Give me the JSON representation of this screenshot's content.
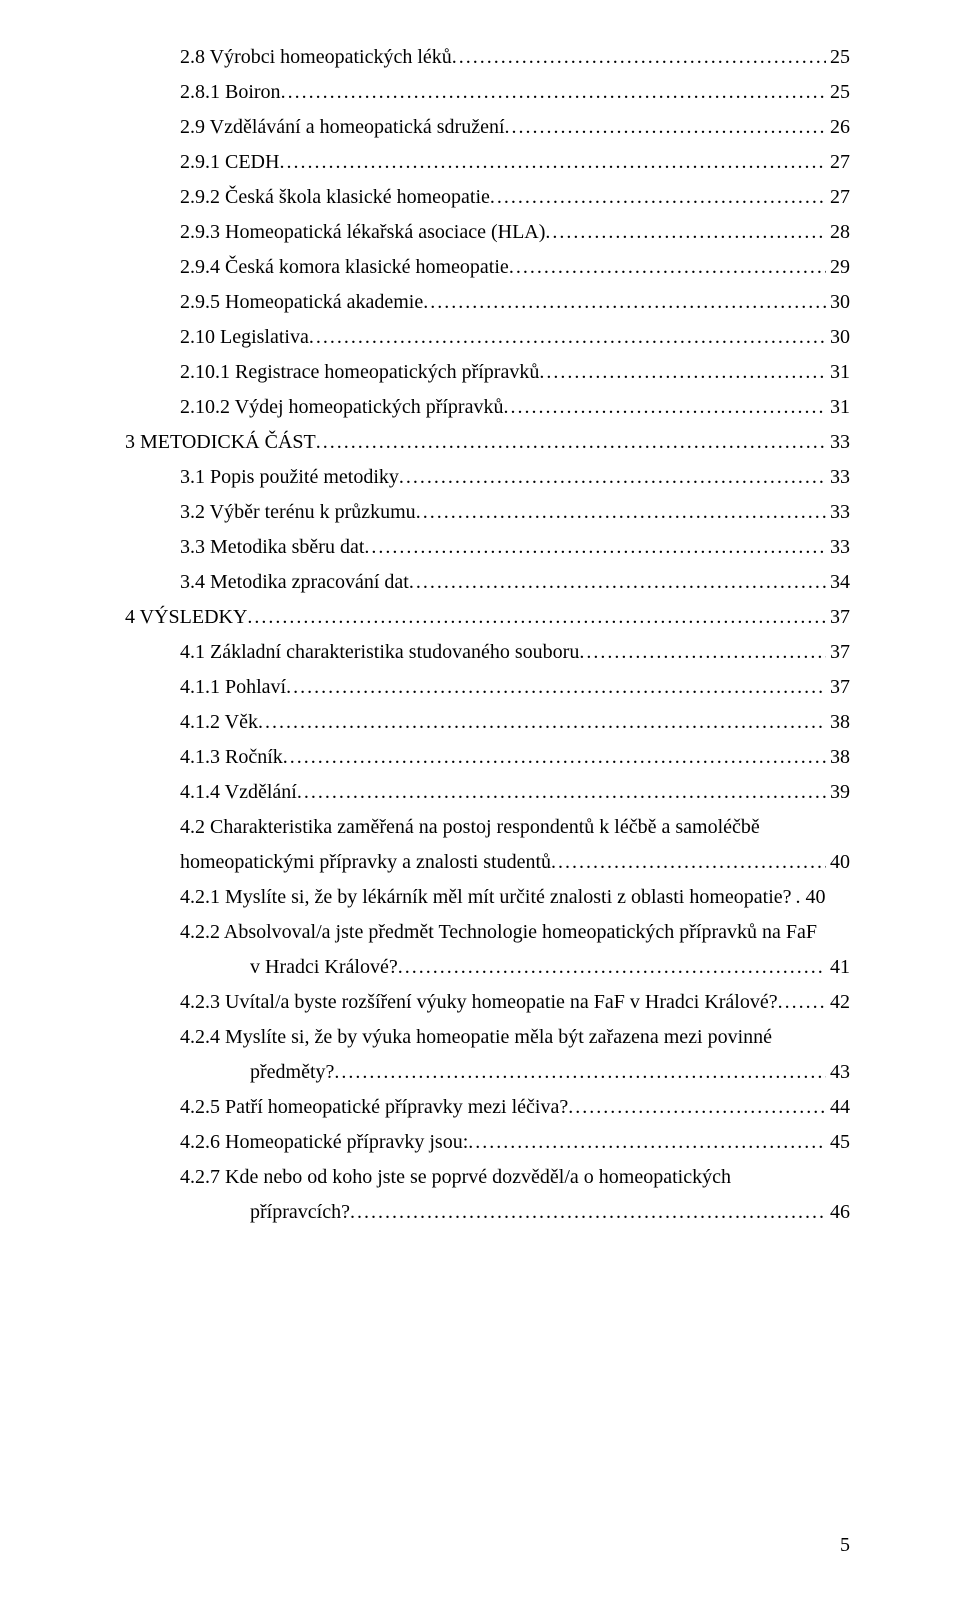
{
  "entries": [
    {
      "indentClass": "indent-1",
      "label": "2.8   Výrobci homeopatických léků",
      "page": "25"
    },
    {
      "indentClass": "indent-2",
      "label": "2.8.1    Boiron",
      "page": "25"
    },
    {
      "indentClass": "indent-1",
      "label": "2.9   Vzdělávání a homeopatická sdružení",
      "page": "26"
    },
    {
      "indentClass": "indent-2",
      "label": "2.9.1    CEDH",
      "page": "27"
    },
    {
      "indentClass": "indent-2",
      "label": "2.9.2    Česká škola klasické homeopatie",
      "page": "27"
    },
    {
      "indentClass": "indent-2",
      "label": "2.9.3    Homeopatická lékařská asociace (HLA)",
      "page": "28"
    },
    {
      "indentClass": "indent-2",
      "label": "2.9.4    Česká komora klasické homeopatie",
      "page": "29"
    },
    {
      "indentClass": "indent-2",
      "label": "2.9.5    Homeopatická akademie",
      "page": "30"
    },
    {
      "indentClass": "indent-1",
      "label": "2.10  Legislativa",
      "page": "30"
    },
    {
      "indentClass": "indent-2",
      "label": "2.10.1  Registrace homeopatických přípravků",
      "page": "31"
    },
    {
      "indentClass": "indent-2",
      "label": "2.10.2  Výdej homeopatických přípravků",
      "page": "31"
    },
    {
      "indentClass": "indent-0n",
      "label": "3   METODICKÁ ČÁST",
      "page": "33"
    },
    {
      "indentClass": "indent-1",
      "label": "3.1   Popis použité metodiky",
      "page": "33"
    },
    {
      "indentClass": "indent-1",
      "label": "3.2   Výběr terénu k průzkumu",
      "page": "33"
    },
    {
      "indentClass": "indent-1",
      "label": "3.3   Metodika sběru dat",
      "page": "33"
    },
    {
      "indentClass": "indent-1",
      "label": "3.4   Metodika zpracování dat",
      "page": "34"
    },
    {
      "indentClass": "indent-0n",
      "label": "4   VÝSLEDKY",
      "page": "37"
    },
    {
      "indentClass": "indent-1",
      "label": "4.1   Základní charakteristika studovaného souboru",
      "page": "37"
    },
    {
      "indentClass": "indent-2",
      "label": "4.1.1    Pohlaví",
      "page": "37"
    },
    {
      "indentClass": "indent-2",
      "label": "4.1.2    Věk",
      "page": "38"
    },
    {
      "indentClass": "indent-2",
      "label": "4.1.3    Ročník",
      "page": "38"
    },
    {
      "indentClass": "indent-2",
      "label": "4.1.4    Vzdělání",
      "page": "39"
    }
  ],
  "entry_42": {
    "line1": "4.2   Charakteristika zaměřená na postoj respondentů k léčbě a samoléčbě",
    "line2_label": "homeopatickými přípravky a znalosti studentů",
    "line2_page": "40"
  },
  "entry_421": {
    "label": "4.2.1    Myslíte si, že by lékárník měl mít určité znalosti z oblasti homeopatie?",
    "page": ". 40"
  },
  "entry_422": {
    "line1": "4.2.2    Absolvoval/a jste předmět Technologie homeopatických přípravků na FaF",
    "line2_label": "v Hradci Králové?",
    "line2_page": "41"
  },
  "entry_423": {
    "label": "4.2.3    Uvítal/a byste rozšíření výuky homeopatie na FaF v Hradci Králové?",
    "page": "42"
  },
  "entry_424": {
    "line1": "4.2.4    Myslíte si, že by výuka homeopatie měla být zařazena mezi povinné",
    "line2_label": "předměty?",
    "line2_page": "43"
  },
  "entry_425": {
    "label": "4.2.5    Patří homeopatické přípravky mezi léčiva?",
    "page": "44"
  },
  "entry_426": {
    "label": "4.2.6    Homeopatické přípravky jsou:",
    "page": "45"
  },
  "entry_427": {
    "line1": "4.2.7    Kde nebo od koho jste se poprvé dozvěděl/a o homeopatických",
    "line2_label": "přípravcích?",
    "line2_page": "46"
  },
  "footer_page": "5"
}
